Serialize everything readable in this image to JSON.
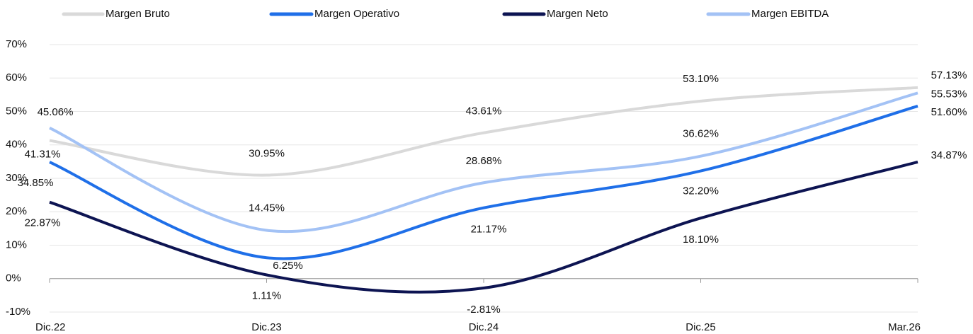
{
  "chart_data": {
    "type": "line",
    "categories": [
      "Dic.22",
      "Dic.23",
      "Dic.24",
      "Dic.25",
      "Mar.26"
    ],
    "series": [
      {
        "name": "Margen Bruto",
        "color": "#d9d9d9",
        "values": [
          41.31,
          30.95,
          43.61,
          53.1,
          57.13
        ],
        "value_labels": [
          "41.31%",
          "30.95%",
          "43.61%",
          "53.10%",
          "57.13%"
        ]
      },
      {
        "name": "Margen Operativo",
        "color": "#1f6fe8",
        "values": [
          34.85,
          6.25,
          21.17,
          32.2,
          51.6
        ],
        "value_labels": [
          "34.85%",
          "6.25%",
          "21.17%",
          "32.20%",
          "51.60%"
        ]
      },
      {
        "name": "Margen Neto",
        "color": "#0d1452",
        "values": [
          22.87,
          1.11,
          -2.81,
          18.1,
          34.87
        ],
        "value_labels": [
          "22.87%",
          "1.11%",
          "-2.81%",
          "18.10%",
          "34.87%"
        ]
      },
      {
        "name": "Margen EBITDA",
        "color": "#a3c2f5",
        "values": [
          45.06,
          14.45,
          28.68,
          36.62,
          55.53
        ],
        "value_labels": [
          "45.06%",
          "14.45%",
          "28.68%",
          "36.62%",
          "55.53%"
        ]
      }
    ],
    "ylim": [
      -10,
      70
    ],
    "yticks": [
      {
        "value": -10,
        "label": "-10%"
      },
      {
        "value": 0,
        "label": "0%"
      },
      {
        "value": 10,
        "label": "10%"
      },
      {
        "value": 20,
        "label": "20%"
      },
      {
        "value": 30,
        "label": "30%"
      },
      {
        "value": 40,
        "label": "40%"
      },
      {
        "value": 50,
        "label": "50%"
      },
      {
        "value": 60,
        "label": "60%"
      },
      {
        "value": 70,
        "label": "70%"
      }
    ],
    "grid": true,
    "legend": "top"
  }
}
